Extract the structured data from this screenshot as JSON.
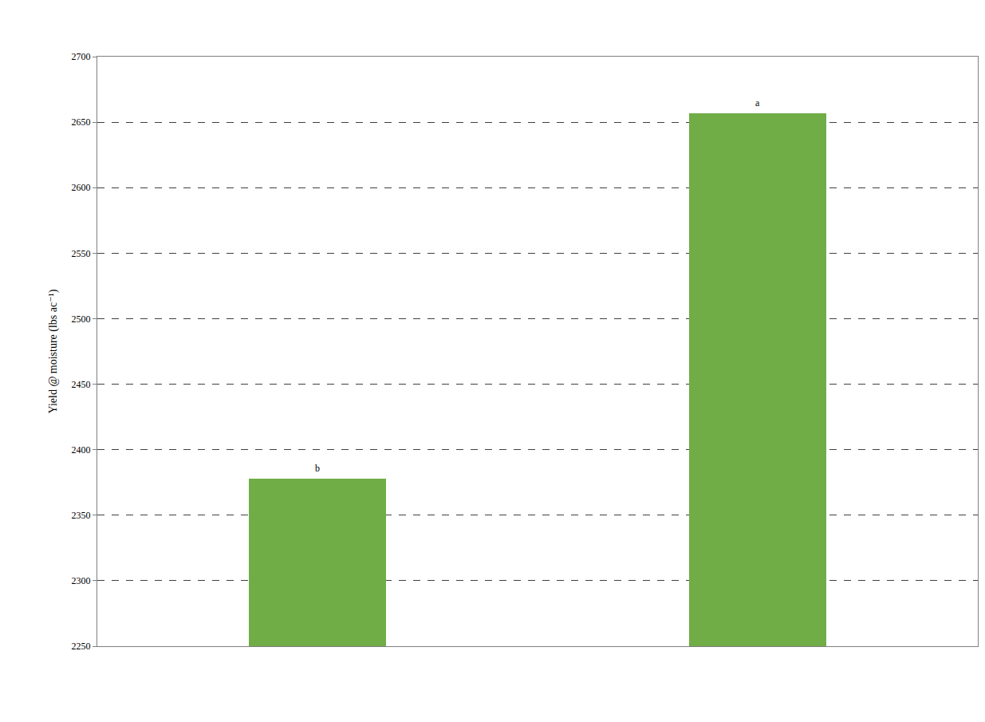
{
  "chart_data": {
    "type": "bar",
    "y_label": "Yield @ moisture (lbs ac⁻¹)",
    "categories": [
      null,
      null
    ],
    "values": [
      2378,
      2657
    ],
    "letters": [
      "b",
      "a"
    ],
    "color": "#70ad47",
    "ylim": [
      2250,
      2700
    ],
    "yticks": [
      2250,
      2300,
      2350,
      2400,
      2450,
      2500,
      2550,
      2600,
      2650,
      2700
    ],
    "grid": true,
    "tick_labels": "y"
  }
}
